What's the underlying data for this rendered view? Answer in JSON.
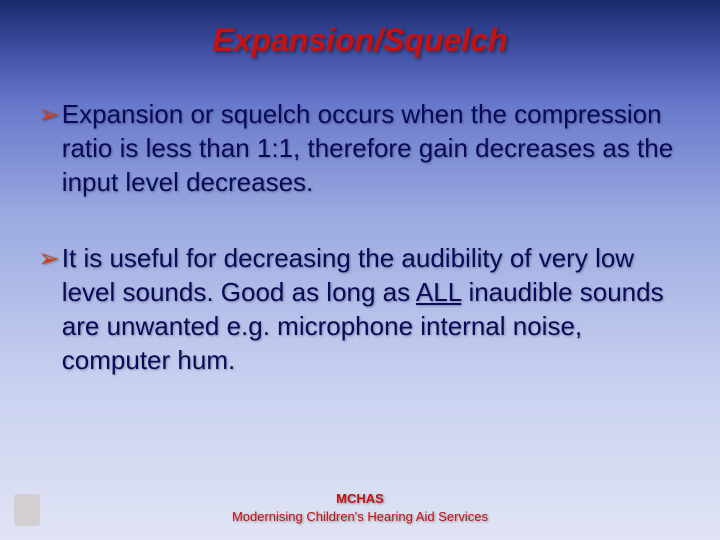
{
  "colors": {
    "title_color": "#c71010",
    "bullet_marker_color": "#d04018",
    "body_text_color": "#0a0a5a",
    "footer_color": "#c71010",
    "bg_gradient_top": "#1a2a6c",
    "bg_gradient_bottom": "#e0e4f4"
  },
  "typography": {
    "title_fontsize": 32,
    "body_fontsize": 26,
    "footer_fontsize": 13,
    "font_family": "Verdana"
  },
  "title": "Expansion/Squelch",
  "bullets": [
    {
      "marker": "➢",
      "text_pre": "Expansion or squelch occurs when the compression ratio is less than 1:1, therefore gain decreases as the input level decreases.",
      "underlined": "",
      "text_post": ""
    },
    {
      "marker": "➢",
      "text_pre": "It is useful for decreasing the audibility of very low level sounds.  Good as long as ",
      "underlined": "ALL",
      "text_post": "  inaudible sounds are unwanted e.g. microphone internal noise, computer hum."
    }
  ],
  "footer": {
    "line1": "MCHAS",
    "line2": "Modernising Children's Hearing Aid Services"
  }
}
